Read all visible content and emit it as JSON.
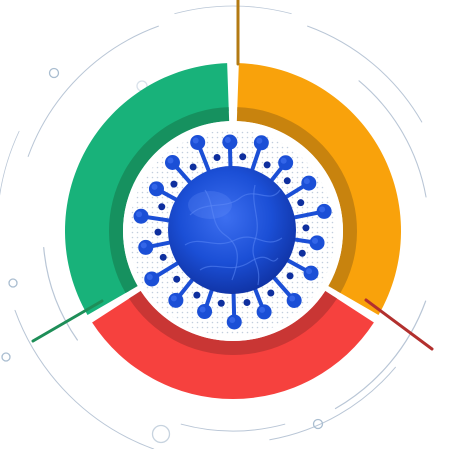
{
  "diagram": {
    "center_icon": "virus-icon",
    "segments": [
      {
        "name": "top-right",
        "color": "#F9A20B",
        "shade": "#C8830E",
        "line_color": "#B37A12"
      },
      {
        "name": "bottom",
        "color": "#F6413E",
        "shade": "#C93634",
        "line_color": "#B2302E"
      },
      {
        "name": "left",
        "color": "#18B27A",
        "shade": "#16915F",
        "line_color": "#1E8E58"
      }
    ],
    "colors": {
      "virus": "#1B4FD6",
      "virus_dark": "#0E2F9E",
      "virus_light": "#3D6FF0",
      "guide_lines": "#B9C6D6",
      "dots": "#B8C7D8"
    }
  }
}
